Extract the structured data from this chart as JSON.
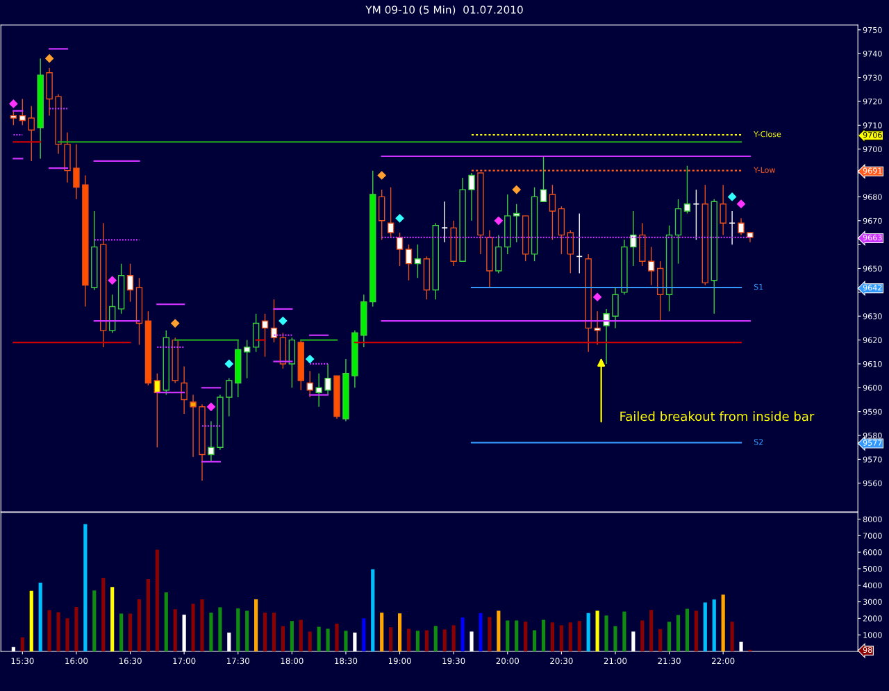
{
  "chart_data": [
    {
      "type": "candlestick",
      "title": "YM 09-10 (5 Min)  01.07.2010",
      "xlim": [
        "2010-07-01T15:18",
        "2010-07-01T23:15"
      ],
      "ylim": [
        9548,
        9752
      ],
      "yticks": [
        9560,
        9570,
        9577,
        9580,
        9590,
        9600,
        9610,
        9620,
        9630,
        {
          "value": 9640,
          "label": null
        },
        9642,
        9650,
        {
          "value": 9660,
          "label": null
        },
        9663,
        9670,
        9680,
        {
          "value": 9690,
          "label": null
        },
        9691,
        9700,
        9706,
        9710,
        9720,
        9730,
        9740,
        9750
      ],
      "tick_labels": "y",
      "grid": false,
      "legend": false,
      "annotations": [
        "Failed breakout from inside bar"
      ],
      "series": [
        {
          "type": "line",
          "color": "#cc0000",
          "x": [
            "2010-07-01T15:25",
            "2010-07-01T15:40"
          ],
          "values": [
            9703,
            9703
          ]
        },
        {
          "type": "line",
          "color": "#1fa01f",
          "x": [
            "2010-07-01T15:50",
            "2010-07-01T22:10"
          ],
          "values": [
            9703,
            9703
          ]
        },
        {
          "type": "line",
          "color": "#cc0000",
          "x": [
            "2010-07-01T15:25",
            "2010-07-01T16:30"
          ],
          "values": [
            9619,
            9619
          ]
        },
        {
          "type": "line",
          "color": "#cc0000",
          "x": [
            "2010-07-01T18:35",
            "2010-07-01T22:10"
          ],
          "values": [
            9619,
            9619
          ]
        },
        {
          "type": "line",
          "color": "#1fa01f",
          "x": [
            "2010-07-01T16:55",
            "2010-07-01T17:30"
          ],
          "values": [
            9620,
            9620
          ]
        },
        {
          "type": "line",
          "color": "#1fa01f",
          "x": [
            "2010-07-01T18:05",
            "2010-07-01T18:25"
          ],
          "values": [
            9620,
            9620
          ]
        },
        {
          "type": "line",
          "color": "#cc0000",
          "x": [
            "2010-07-01T17:40",
            "2010-07-01T17:45"
          ],
          "values": [
            9620,
            9620
          ]
        },
        {
          "type": "line",
          "color": "#cc33ff",
          "x": [
            "2010-07-01T18:50",
            "2010-07-01T22:15"
          ],
          "values": [
            9697,
            9697
          ]
        },
        {
          "type": "line",
          "color": "#cc33ff",
          "line_style": "dashed",
          "x": [
            "2010-07-01T18:50",
            "2010-07-01T22:15"
          ],
          "values": [
            9663,
            9663
          ]
        },
        {
          "type": "line",
          "color": "#cc33ff",
          "x": [
            "2010-07-01T18:50",
            "2010-07-01T22:15"
          ],
          "values": [
            9628,
            9628
          ]
        },
        {
          "type": "line",
          "color": "#cc33ff",
          "x": [
            "2010-07-01T15:25",
            "2010-07-01T15:30"
          ],
          "values": [
            9716,
            9716
          ]
        },
        {
          "type": "line",
          "color": "#cc33ff",
          "line_style": "dashed",
          "x": [
            "2010-07-01T15:25",
            "2010-07-01T15:30"
          ],
          "values": [
            9706,
            9706
          ]
        },
        {
          "type": "line",
          "color": "#cc33ff",
          "x": [
            "2010-07-01T15:25",
            "2010-07-01T15:30"
          ],
          "values": [
            9696,
            9696
          ]
        },
        {
          "type": "line",
          "color": "#cc33ff",
          "x": [
            "2010-07-01T15:45",
            "2010-07-01T15:55"
          ],
          "values": [
            9742,
            9742
          ]
        },
        {
          "type": "line",
          "color": "#cc33ff",
          "line_style": "dashed",
          "x": [
            "2010-07-01T15:45",
            "2010-07-01T15:55"
          ],
          "values": [
            9717,
            9717
          ]
        },
        {
          "type": "line",
          "color": "#cc33ff",
          "x": [
            "2010-07-01T15:45",
            "2010-07-01T15:55"
          ],
          "values": [
            9692,
            9692
          ]
        },
        {
          "type": "line",
          "color": "#cc33ff",
          "x": [
            "2010-07-01T16:10",
            "2010-07-01T16:35"
          ],
          "values": [
            9695,
            9695
          ]
        },
        {
          "type": "line",
          "color": "#cc33ff",
          "line_style": "dashed",
          "x": [
            "2010-07-01T16:10",
            "2010-07-01T16:35"
          ],
          "values": [
            9662,
            9662
          ]
        },
        {
          "type": "line",
          "color": "#cc33ff",
          "x": [
            "2010-07-01T16:10",
            "2010-07-01T16:35"
          ],
          "values": [
            9628,
            9628
          ]
        },
        {
          "type": "line",
          "color": "#cc33ff",
          "x": [
            "2010-07-01T16:45",
            "2010-07-01T17:00"
          ],
          "values": [
            9635,
            9635
          ]
        },
        {
          "type": "line",
          "color": "#cc33ff",
          "line_style": "dashed",
          "x": [
            "2010-07-01T16:45",
            "2010-07-01T17:00"
          ],
          "values": [
            9617,
            9617
          ]
        },
        {
          "type": "line",
          "color": "#cc33ff",
          "x": [
            "2010-07-01T16:45",
            "2010-07-01T17:00"
          ],
          "values": [
            9598,
            9598
          ]
        },
        {
          "type": "line",
          "color": "#cc33ff",
          "x": [
            "2010-07-01T17:10",
            "2010-07-01T17:20"
          ],
          "values": [
            9600,
            9600
          ]
        },
        {
          "type": "line",
          "color": "#cc33ff",
          "line_style": "dashed",
          "x": [
            "2010-07-01T17:10",
            "2010-07-01T17:20"
          ],
          "values": [
            9584,
            9584
          ]
        },
        {
          "type": "line",
          "color": "#cc33ff",
          "x": [
            "2010-07-01T17:10",
            "2010-07-01T17:20"
          ],
          "values": [
            9569,
            9569
          ]
        },
        {
          "type": "line",
          "color": "#cc33ff",
          "x": [
            "2010-07-01T17:50",
            "2010-07-01T18:00"
          ],
          "values": [
            9633,
            9633
          ]
        },
        {
          "type": "line",
          "color": "#cc33ff",
          "line_style": "dashed",
          "x": [
            "2010-07-01T17:50",
            "2010-07-01T18:00"
          ],
          "values": [
            9622,
            9622
          ]
        },
        {
          "type": "line",
          "color": "#cc33ff",
          "x": [
            "2010-07-01T17:50",
            "2010-07-01T18:00"
          ],
          "values": [
            9611,
            9611
          ]
        },
        {
          "type": "line",
          "color": "#cc33ff",
          "x": [
            "2010-07-01T18:10",
            "2010-07-01T18:20"
          ],
          "values": [
            9622,
            9622
          ]
        },
        {
          "type": "line",
          "color": "#cc33ff",
          "line_style": "dashed",
          "x": [
            "2010-07-01T18:10",
            "2010-07-01T18:20"
          ],
          "values": [
            9610,
            9610
          ]
        },
        {
          "type": "line",
          "color": "#cc33ff",
          "x": [
            "2010-07-01T18:10",
            "2010-07-01T18:20"
          ],
          "values": [
            9597,
            9597
          ]
        },
        {
          "type": "line",
          "name": "Y-Close",
          "color": "#ffff00",
          "line_style": "dotted",
          "x": [
            "2010-07-01T19:40",
            "2010-07-01T22:10"
          ],
          "values": [
            9706,
            9706
          ]
        },
        {
          "type": "line",
          "name": "Y-Low",
          "color": "#ff5a1e",
          "line_style": "dotted",
          "x": [
            "2010-07-01T19:40",
            "2010-07-01T22:10"
          ],
          "values": [
            9691,
            9691
          ]
        },
        {
          "type": "line",
          "name": "S1",
          "color": "#3399ff",
          "x": [
            "2010-07-01T19:40",
            "2010-07-01T22:10"
          ],
          "values": [
            9642,
            9642
          ]
        },
        {
          "type": "line",
          "name": "S2",
          "color": "#3399ff",
          "x": [
            "2010-07-01T19:40",
            "2010-07-01T22:10"
          ],
          "values": [
            9577,
            9577
          ]
        },
        {
          "type": "candlestick",
          "color": "#3fcf3f",
          "x": [
            "2010-07-01T15:40",
            "2010-07-01T16:10",
            "2010-07-01T16:20",
            "2010-07-01T16:25",
            "2010-07-01T16:50",
            "2010-07-01T17:15",
            "2010-07-01T17:20",
            "2010-07-01T17:25",
            "2010-07-01T17:30",
            "2010-07-01T17:35",
            "2010-07-01T17:40",
            "2010-07-01T18:00",
            "2010-07-01T18:15",
            "2010-07-01T18:20",
            "2010-07-01T18:30",
            "2010-07-01T18:35",
            "2010-07-01T18:40",
            "2010-07-01T18:45",
            "2010-07-01T19:10",
            "2010-07-01T19:20",
            "2010-07-01T19:35",
            "2010-07-01T19:40",
            "2010-07-01T19:55",
            "2010-07-01T20:00",
            "2010-07-01T20:05",
            "2010-07-01T20:15",
            "2010-07-01T20:20",
            "2010-07-01T20:55",
            "2010-07-01T21:00",
            "2010-07-01T21:05",
            "2010-07-01T21:10",
            "2010-07-01T21:30",
            "2010-07-01T21:35",
            "2010-07-01T21:40",
            "2010-07-01T21:55"
          ],
          "ohlc": [
            [
              9709,
              9738,
              9696,
              9731
            ],
            [
              9642,
              9674,
              9641,
              9659
            ],
            [
              9624,
              9639,
              9623,
              9634
            ],
            [
              9633,
              9652,
              9631,
              9647
            ],
            [
              9599,
              9624,
              9597,
              9621
            ],
            [
              9572,
              9586,
              9569,
              9575
            ],
            [
              9575,
              9597,
              9574,
              9596
            ],
            [
              9596,
              9604,
              9588,
              9603
            ],
            [
              9602,
              9620,
              9596,
              9616
            ],
            [
              9615,
              9620,
              9604,
              9617
            ],
            [
              9617,
              9631,
              9615,
              9627
            ],
            [
              9610,
              9621,
              9600,
              9620
            ],
            [
              9598,
              9606,
              9592,
              9600
            ],
            [
              9599,
              9610,
              9597,
              9604
            ],
            [
              9587,
              9612,
              9586,
              9606
            ],
            [
              9605,
              9624,
              9600,
              9623
            ],
            [
              9622,
              9639,
              9617,
              9636
            ],
            [
              9636,
              9691,
              9634,
              9681
            ],
            [
              9652,
              9660,
              9646,
              9654
            ],
            [
              9641,
              9669,
              9637,
              9668
            ],
            [
              9653,
              9688,
              9653,
              9683
            ],
            [
              9683,
              9690,
              9670,
              9689
            ],
            [
              9649,
              9664,
              9648,
              9659
            ],
            [
              9659,
              9681,
              9656,
              9672
            ],
            [
              9672,
              9677,
              9661,
              9673
            ],
            [
              9656,
              9684,
              9653,
              9680
            ],
            [
              9678,
              9697,
              9678,
              9683
            ],
            [
              9626,
              9633,
              9610,
              9631
            ],
            [
              9630,
              9642,
              9625,
              9639
            ],
            [
              9640,
              9662,
              9639,
              9659
            ],
            [
              9659,
              9674,
              9651,
              9664
            ],
            [
              9639,
              9668,
              9632,
              9664
            ],
            [
              9664,
              9679,
              9652,
              9675
            ],
            [
              9674,
              9693,
              9673,
              9677
            ],
            [
              9645,
              9679,
              9631,
              9678
            ]
          ],
          "colors": [
            "#00ee00",
            "#000038",
            "#000038",
            "#000038",
            "#000038",
            "#ffffff",
            "#000038",
            "#000038",
            "#00ee00",
            "#ffffff",
            "#000038",
            "#000038",
            "#ffffff",
            "#ffffff",
            "#00ee00",
            "#00ee00",
            "#00ee00",
            "#00ee00",
            "#ffffff",
            "#000038",
            "#000038",
            "#ffffff",
            "#000038",
            "#000038",
            "#ffffff",
            "#000038",
            "#ffffff",
            "#ffffff",
            "#000038",
            "#000038",
            "#ffffff",
            "#000038",
            "#000038",
            "#ffffff",
            "#000038"
          ]
        },
        {
          "type": "candlestick",
          "color": "#e8501c",
          "x": [
            "2010-07-01T15:25",
            "2010-07-01T15:30",
            "2010-07-01T15:35",
            "2010-07-01T15:45",
            "2010-07-01T15:50",
            "2010-07-01T15:55",
            "2010-07-01T16:00",
            "2010-07-01T16:05",
            "2010-07-01T16:15",
            "2010-07-01T16:30",
            "2010-07-01T16:35",
            "2010-07-01T16:40",
            "2010-07-01T16:45",
            "2010-07-01T16:55",
            "2010-07-01T17:00",
            "2010-07-01T17:05",
            "2010-07-01T17:10",
            "2010-07-01T17:45",
            "2010-07-01T17:50",
            "2010-07-01T17:55",
            "2010-07-01T18:05",
            "2010-07-01T18:10",
            "2010-07-01T18:25",
            "2010-07-01T18:50",
            "2010-07-01T18:55",
            "2010-07-01T19:00",
            "2010-07-01T19:05",
            "2010-07-01T19:15",
            "2010-07-01T19:30",
            "2010-07-01T19:45",
            "2010-07-01T19:50",
            "2010-07-01T20:10",
            "2010-07-01T20:25",
            "2010-07-01T20:30",
            "2010-07-01T20:35",
            "2010-07-01T20:45",
            "2010-07-01T20:50",
            "2010-07-01T21:15",
            "2010-07-01T21:20",
            "2010-07-01T21:25",
            "2010-07-01T21:50",
            "2010-07-01T22:00",
            "2010-07-01T22:10",
            "2010-07-01T22:15"
          ],
          "ohlc": [
            [
              9714,
              9716,
              9710,
              9713
            ],
            [
              9714,
              9721,
              9710,
              9712
            ],
            [
              9713,
              9718,
              9695,
              9708
            ],
            [
              9732,
              9734,
              9714,
              9721
            ],
            [
              9722,
              9723,
              9698,
              9702
            ],
            [
              9702,
              9707,
              9686,
              9691
            ],
            [
              9692,
              9702,
              9679,
              9684
            ],
            [
              9685,
              9689,
              9634,
              9643
            ],
            [
              9660,
              9669,
              9617,
              9624
            ],
            [
              9647,
              9652,
              9636,
              9641
            ],
            [
              9642,
              9646,
              9618,
              9627
            ],
            [
              9628,
              9632,
              9601,
              9602
            ],
            [
              9603,
              9606,
              9575,
              9598
            ],
            [
              9620,
              9621,
              9602,
              9603
            ],
            [
              9602,
              9609,
              9589,
              9595
            ],
            [
              9594,
              9597,
              9571,
              9592
            ],
            [
              9592,
              9593,
              9561,
              9572
            ],
            [
              9628,
              9631,
              9613,
              9625
            ],
            [
              9625,
              9637,
              9619,
              9621
            ],
            [
              9621,
              9623,
              9608,
              9610
            ],
            [
              9619,
              9620,
              9599,
              9603
            ],
            [
              9602,
              9607,
              9596,
              9599
            ],
            [
              9605,
              9605,
              9587,
              9588
            ],
            [
              9680,
              9683,
              9662,
              9670
            ],
            [
              9669,
              9684,
              9663,
              9665
            ],
            [
              9663,
              9665,
              9651,
              9658
            ],
            [
              9658,
              9660,
              9645,
              9652
            ],
            [
              9654,
              9655,
              9637,
              9641
            ],
            [
              9667,
              9670,
              9651,
              9653
            ],
            [
              9690,
              9690,
              9656,
              9664
            ],
            [
              9663,
              9666,
              9642,
              9649
            ],
            [
              9672,
              9672,
              9653,
              9656
            ],
            [
              9681,
              9685,
              9662,
              9674
            ],
            [
              9675,
              9676,
              9656,
              9664
            ],
            [
              9665,
              9666,
              9648,
              9656
            ],
            [
              9654,
              9656,
              9615,
              9625
            ],
            [
              9625,
              9632,
              9618,
              9624
            ],
            [
              9664,
              9669,
              9651,
              9653
            ],
            [
              9653,
              9659,
              9643,
              9649
            ],
            [
              9650,
              9653,
              9628,
              9639
            ],
            [
              9677,
              9685,
              9643,
              9644
            ],
            [
              9677,
              9685,
              9664,
              9669
            ],
            [
              9669,
              9671,
              9664,
              9665
            ],
            [
              9665,
              9665,
              9661,
              9663
            ]
          ],
          "colors": [
            "#ffffff",
            "#ffffff",
            "#000038",
            "#000038",
            "#000038",
            "#000038",
            "#ff5000",
            "#ff5000",
            "#000038",
            "#ffffff",
            "#000038",
            "#ff5000",
            "#ffff00",
            "#000038",
            "#000038",
            "#ffa500",
            "#000038",
            "#ffffff",
            "#ffffff",
            "#000038",
            "#ff5000",
            "#ffffff",
            "#ff5000",
            "#000038",
            "#ffffff",
            "#ffffff",
            "#ffffff",
            "#000038",
            "#000038",
            "#000038",
            "#000038",
            "#000038",
            "#000038",
            "#000038",
            "#000038",
            "#000038",
            "#ffffff",
            "#000038",
            "#ffffff",
            "#000038",
            "#000038",
            "#000038",
            "#ffffff",
            "#ffffff"
          ]
        },
        {
          "type": "candlestick",
          "color": "#ffffff",
          "x": [
            "2010-07-01T19:25",
            "2010-07-01T20:40",
            "2010-07-01T21:45",
            "2010-07-01T22:05"
          ],
          "ohlc": [
            [
              9667,
              9678,
              9661,
              9667
            ],
            [
              9655,
              9673,
              9648,
              9655
            ],
            [
              9677,
              9683,
              9662,
              9677
            ],
            [
              9669,
              9674,
              9660,
              9669
            ]
          ],
          "colors": [
            "#ffffff",
            "#ffffff",
            "#ffffff",
            "#ffffff"
          ]
        },
        {
          "type": "scatter",
          "color": "#ff33ff",
          "marker": "diamond",
          "x": [
            "2010-07-01T15:25",
            "2010-07-01T16:20",
            "2010-07-01T17:15",
            "2010-07-01T19:55",
            "2010-07-01T20:50",
            "2010-07-01T22:10"
          ],
          "values": [
            9719,
            9645,
            9592,
            9670,
            9638,
            9677
          ]
        },
        {
          "type": "scatter",
          "color": "#ffa030",
          "marker": "diamond",
          "x": [
            "2010-07-01T15:45",
            "2010-07-01T16:55",
            "2010-07-01T18:50",
            "2010-07-01T20:05"
          ],
          "values": [
            9738,
            9627,
            9689,
            9683
          ]
        },
        {
          "type": "scatter",
          "color": "#33ffff",
          "marker": "diamond",
          "x": [
            "2010-07-01T17:25",
            "2010-07-01T17:55",
            "2010-07-01T18:10",
            "2010-07-01T19:00",
            "2010-07-01T22:05"
          ],
          "values": [
            9610,
            9628,
            9612,
            9671,
            9680
          ]
        }
      ]
    },
    {
      "type": "bar",
      "xlim": [
        "2010-07-01T15:18",
        "2010-07-01T23:15"
      ],
      "ylim": [
        0,
        8400
      ],
      "yticks": [
        98,
        1000,
        2000,
        3000,
        4000,
        5000,
        6000,
        7000,
        8000
      ],
      "grid": false,
      "legend": false,
      "xticks": [
        {
          "value": "2010-07-01T15:30",
          "label": "15:30"
        },
        {
          "value": "2010-07-01T16:00",
          "label": "16:00"
        },
        {
          "value": "2010-07-01T16:30",
          "label": "16:30"
        },
        {
          "value": "2010-07-01T17:00",
          "label": "17:00"
        },
        {
          "value": "2010-07-01T17:30",
          "label": "17:30"
        },
        {
          "value": "2010-07-01T18:00",
          "label": "18:00"
        },
        {
          "value": "2010-07-01T18:30",
          "label": "18:30"
        },
        {
          "value": "2010-07-01T19:00",
          "label": "19:00"
        },
        {
          "value": "2010-07-01T19:30",
          "label": "19:30"
        },
        {
          "value": "2010-07-01T20:00",
          "label": "20:00"
        },
        {
          "value": "2010-07-01T20:30",
          "label": "20:30"
        },
        {
          "value": "2010-07-01T21:00",
          "label": "21:00"
        },
        {
          "value": "2010-07-01T21:30",
          "label": "21:30"
        },
        {
          "value": "2010-07-01T22:00",
          "label": "22:00"
        }
      ],
      "x": [
        "2010-07-01T15:25",
        "2010-07-01T15:30",
        "2010-07-01T15:35",
        "2010-07-01T15:40",
        "2010-07-01T15:45",
        "2010-07-01T15:50",
        "2010-07-01T15:55",
        "2010-07-01T16:00",
        "2010-07-01T16:05",
        "2010-07-01T16:10",
        "2010-07-01T16:15",
        "2010-07-01T16:20",
        "2010-07-01T16:25",
        "2010-07-01T16:30",
        "2010-07-01T16:35",
        "2010-07-01T16:40",
        "2010-07-01T16:45",
        "2010-07-01T16:50",
        "2010-07-01T16:55",
        "2010-07-01T17:00",
        "2010-07-01T17:05",
        "2010-07-01T17:10",
        "2010-07-01T17:15",
        "2010-07-01T17:20",
        "2010-07-01T17:25",
        "2010-07-01T17:30",
        "2010-07-01T17:35",
        "2010-07-01T17:40",
        "2010-07-01T17:45",
        "2010-07-01T17:50",
        "2010-07-01T17:55",
        "2010-07-01T18:00",
        "2010-07-01T18:05",
        "2010-07-01T18:10",
        "2010-07-01T18:15",
        "2010-07-01T18:20",
        "2010-07-01T18:25",
        "2010-07-01T18:30",
        "2010-07-01T18:35",
        "2010-07-01T18:40",
        "2010-07-01T18:45",
        "2010-07-01T18:50",
        "2010-07-01T18:55",
        "2010-07-01T19:00",
        "2010-07-01T19:05",
        "2010-07-01T19:10",
        "2010-07-01T19:15",
        "2010-07-01T19:20",
        "2010-07-01T19:25",
        "2010-07-01T19:30",
        "2010-07-01T19:35",
        "2010-07-01T19:40",
        "2010-07-01T19:45",
        "2010-07-01T19:50",
        "2010-07-01T19:55",
        "2010-07-01T20:00",
        "2010-07-01T20:05",
        "2010-07-01T20:10",
        "2010-07-01T20:15",
        "2010-07-01T20:20",
        "2010-07-01T20:25",
        "2010-07-01T20:30",
        "2010-07-01T20:35",
        "2010-07-01T20:40",
        "2010-07-01T20:45",
        "2010-07-01T20:50",
        "2010-07-01T20:55",
        "2010-07-01T21:00",
        "2010-07-01T21:05",
        "2010-07-01T21:10",
        "2010-07-01T21:15",
        "2010-07-01T21:20",
        "2010-07-01T21:25",
        "2010-07-01T21:30",
        "2010-07-01T21:35",
        "2010-07-01T21:40",
        "2010-07-01T21:45",
        "2010-07-01T21:50",
        "2010-07-01T21:55",
        "2010-07-01T22:00",
        "2010-07-01T22:05",
        "2010-07-01T22:10",
        "2010-07-01T22:15"
      ],
      "values": [
        260,
        850,
        3660,
        4160,
        2500,
        2370,
        2000,
        2690,
        7700,
        3690,
        4450,
        3900,
        2290,
        2290,
        3150,
        4370,
        6150,
        3570,
        2550,
        2220,
        2880,
        3150,
        2340,
        2670,
        1140,
        2600,
        2460,
        3150,
        2340,
        2340,
        1530,
        1840,
        1910,
        1200,
        1490,
        1370,
        1680,
        1250,
        1140,
        2000,
        4970,
        2340,
        1460,
        2300,
        1370,
        1250,
        1280,
        1540,
        1330,
        1580,
        2050,
        1200,
        2320,
        2080,
        2460,
        1870,
        1870,
        1800,
        1280,
        1910,
        1750,
        1580,
        1750,
        1840,
        2320,
        2460,
        2170,
        1530,
        2410,
        1200,
        1870,
        2510,
        1350,
        1790,
        2200,
        2580,
        2460,
        2960,
        3140,
        3430,
        1790,
        590,
        98
      ],
      "colors": [
        "#ffffff",
        "#8b0000",
        "#ffff00",
        "#00bfff",
        "#8b0000",
        "#8b0000",
        "#8b0000",
        "#8b0000",
        "#00bfff",
        "#108c10",
        "#8b0000",
        "#ffff00",
        "#108c10",
        "#8b0000",
        "#8b0000",
        "#8b0000",
        "#8b0000",
        "#108c10",
        "#8b0000",
        "#ffffff",
        "#8b0000",
        "#8b0000",
        "#108c10",
        "#108c10",
        "#ffffff",
        "#108c10",
        "#108c10",
        "#ffa500",
        "#8b0000",
        "#8b0000",
        "#8b0000",
        "#108c10",
        "#8b0000",
        "#8b0000",
        "#108c10",
        "#108c10",
        "#8b0000",
        "#108c10",
        "#ffffff",
        "#0000ff",
        "#00bfff",
        "#ffa500",
        "#8b0000",
        "#ffa500",
        "#8b0000",
        "#108c10",
        "#8b0000",
        "#108c10",
        "#8b0000",
        "#8b0000",
        "#0000ff",
        "#ffffff",
        "#0000ff",
        "#8b0000",
        "#ffa500",
        "#108c10",
        "#108c10",
        "#8b0000",
        "#108c10",
        "#108c10",
        "#8b0000",
        "#8b0000",
        "#8b0000",
        "#8b0000",
        "#00bfff",
        "#ffff00",
        "#108c10",
        "#108c10",
        "#108c10",
        "#ffffff",
        "#8b0000",
        "#8b0000",
        "#8b0000",
        "#108c10",
        "#108c10",
        "#108c10",
        "#8b0000",
        "#00bfff",
        "#00bfff",
        "#ffa500",
        "#8b0000",
        "#ffffff",
        "#8b0000"
      ]
    }
  ]
}
